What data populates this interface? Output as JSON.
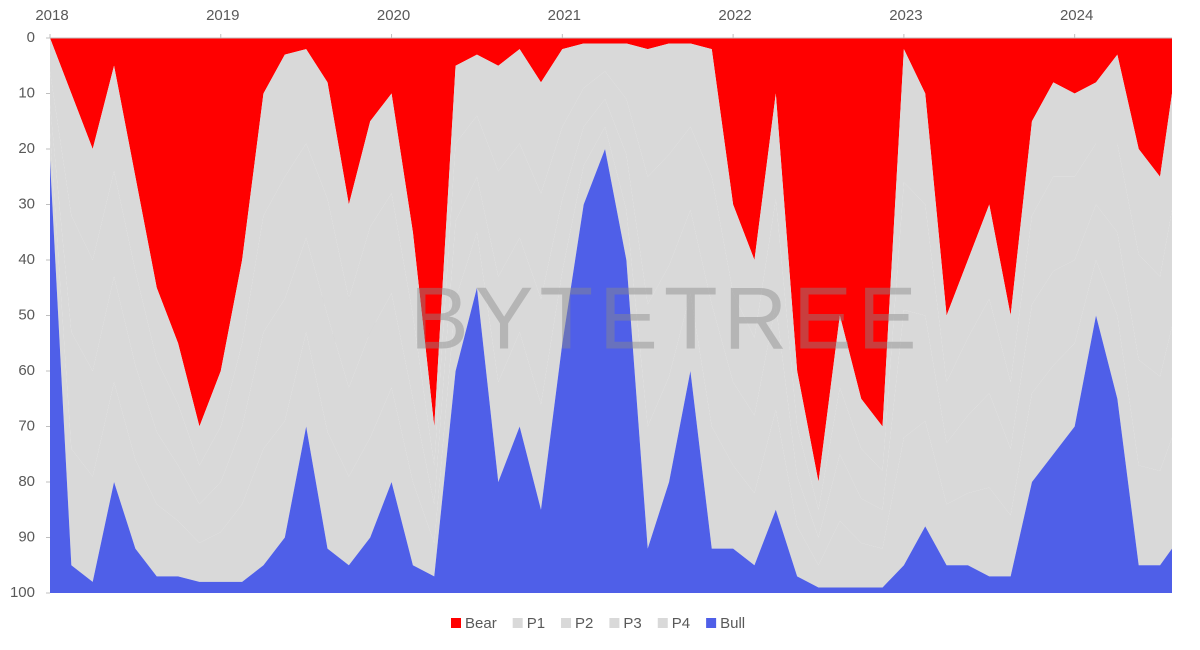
{
  "chart_data": {
    "type": "stacked_area",
    "watermark": "BYTETREE",
    "y_inverted": true,
    "x": [
      2018,
      2018.125,
      2018.25,
      2018.375,
      2018.5,
      2018.625,
      2018.75,
      2018.875,
      2019,
      2019.125,
      2019.25,
      2019.375,
      2019.5,
      2019.625,
      2019.75,
      2019.875,
      2020,
      2020.125,
      2020.25,
      2020.375,
      2020.5,
      2020.625,
      2020.75,
      2020.875,
      2021,
      2021.125,
      2021.25,
      2021.375,
      2021.5,
      2021.625,
      2021.75,
      2021.875,
      2022,
      2022.125,
      2022.25,
      2022.375,
      2022.5,
      2022.625,
      2022.75,
      2022.875,
      2023,
      2023.125,
      2023.25,
      2023.375,
      2023.5,
      2023.625,
      2023.75,
      2023.875,
      2024,
      2024.125,
      2024.25,
      2024.375,
      2024.5,
      2024.57
    ],
    "xlim": [
      2018,
      2024.57
    ],
    "xticks": [
      2018,
      2019,
      2020,
      2021,
      2022,
      2023,
      2024
    ],
    "ylim": [
      0,
      100
    ],
    "yticks": [
      0,
      10,
      20,
      30,
      40,
      50,
      60,
      70,
      80,
      90,
      100
    ],
    "series": [
      {
        "name": "Bear",
        "color": "#ff0000",
        "values": [
          0,
          10,
          20,
          5,
          25,
          45,
          55,
          70,
          60,
          40,
          10,
          3,
          2,
          8,
          30,
          15,
          10,
          35,
          70,
          5,
          3,
          5,
          2,
          8,
          2,
          1,
          1,
          1,
          2,
          1,
          1,
          2,
          30,
          40,
          10,
          60,
          80,
          50,
          65,
          70,
          2,
          10,
          50,
          40,
          30,
          50,
          15,
          8,
          10,
          8,
          3,
          20,
          25,
          10
        ]
      },
      {
        "name": "P1",
        "color": "#d9d9d9",
        "values": [
          6,
          22,
          20,
          19,
          17,
          13,
          11,
          7,
          10,
          15,
          22,
          22,
          17,
          21,
          17,
          19,
          18,
          15,
          7,
          14,
          11,
          19,
          17,
          20,
          14,
          8,
          5,
          10,
          23,
          20,
          15,
          23,
          16,
          14,
          19,
          10,
          5,
          13,
          9,
          8,
          24,
          20,
          12,
          14,
          17,
          12,
          17,
          17,
          15,
          11,
          16,
          19,
          18,
          21
        ]
      },
      {
        "name": "P2",
        "color": "#d9d9d9",
        "values": [
          6,
          21,
          20,
          19,
          17,
          13,
          11,
          7,
          10,
          15,
          21,
          22,
          17,
          21,
          16,
          19,
          18,
          15,
          7,
          14,
          11,
          19,
          17,
          19,
          13,
          7,
          5,
          10,
          23,
          20,
          15,
          23,
          16,
          14,
          19,
          9,
          5,
          12,
          9,
          7,
          23,
          20,
          11,
          14,
          17,
          12,
          16,
          17,
          15,
          11,
          16,
          19,
          18,
          21
        ]
      },
      {
        "name": "P3",
        "color": "#d9d9d9",
        "values": [
          5,
          21,
          19,
          19,
          17,
          13,
          10,
          7,
          9,
          14,
          21,
          22,
          17,
          21,
          16,
          19,
          17,
          15,
          7,
          14,
          10,
          19,
          17,
          19,
          13,
          7,
          5,
          10,
          22,
          20,
          15,
          22,
          15,
          14,
          19,
          9,
          5,
          12,
          8,
          7,
          23,
          19,
          11,
          14,
          17,
          12,
          16,
          17,
          15,
          10,
          15,
          19,
          17,
          20
        ]
      },
      {
        "name": "P4",
        "color": "#d9d9d9",
        "values": [
          5,
          21,
          19,
          18,
          16,
          13,
          10,
          7,
          9,
          14,
          21,
          21,
          17,
          21,
          16,
          18,
          17,
          15,
          6,
          13,
          10,
          18,
          17,
          19,
          13,
          7,
          4,
          9,
          22,
          19,
          14,
          22,
          15,
          13,
          18,
          9,
          4,
          12,
          8,
          7,
          23,
          19,
          11,
          13,
          16,
          11,
          16,
          16,
          15,
          10,
          15,
          18,
          17,
          20
        ]
      },
      {
        "name": "Bull",
        "color": "#4f5fe8",
        "values": [
          78,
          5,
          2,
          20,
          8,
          3,
          3,
          2,
          2,
          2,
          5,
          10,
          30,
          8,
          5,
          10,
          20,
          5,
          3,
          40,
          55,
          20,
          30,
          15,
          45,
          70,
          80,
          60,
          8,
          20,
          40,
          8,
          8,
          5,
          15,
          3,
          1,
          1,
          1,
          1,
          5,
          12,
          5,
          5,
          3,
          3,
          20,
          25,
          30,
          50,
          35,
          5,
          5,
          8
        ]
      }
    ],
    "legend": "bottom"
  }
}
